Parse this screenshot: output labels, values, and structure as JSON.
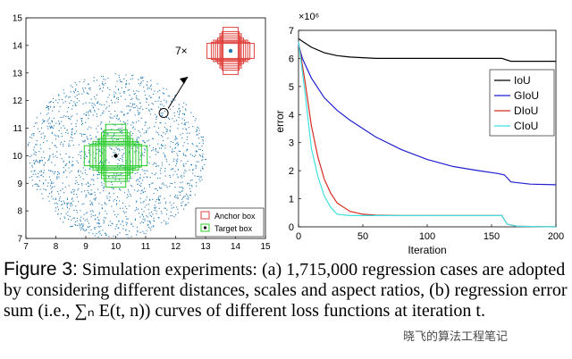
{
  "chart_data": [
    {
      "type": "scatter",
      "panel": "a",
      "xlim": [
        7,
        15
      ],
      "ylim": [
        7,
        15
      ],
      "xticks": [
        "7",
        "8",
        "9",
        "10",
        "11",
        "12",
        "13",
        "14",
        "15"
      ],
      "yticks": [
        "7",
        "8",
        "9",
        "10",
        "11",
        "12",
        "13",
        "14",
        "15"
      ],
      "point_cloud": {
        "center": [
          10,
          10
        ],
        "radius": 3,
        "count": 1700,
        "color": "#1f77b4"
      },
      "target_center": [
        10,
        10
      ],
      "zoom_point": [
        11.6,
        11.55
      ],
      "zoom_label": "7×",
      "legend": [
        {
          "label": "Anchor box",
          "color": "#e0413c"
        },
        {
          "label": "Target box",
          "color": "#2ecc2e"
        }
      ]
    },
    {
      "type": "line",
      "panel": "b",
      "xlabel": "Iteration",
      "ylabel": "error",
      "scale_label": "×10⁶",
      "xlim": [
        0,
        200
      ],
      "ylim": [
        0,
        7
      ],
      "xticks": [
        "0",
        "50",
        "100",
        "150",
        "200"
      ],
      "yticks": [
        "0",
        "1",
        "2",
        "3",
        "4",
        "5",
        "6",
        "7"
      ],
      "series": [
        {
          "name": "IoU",
          "color": "#000000",
          "x": [
            0,
            5,
            10,
            20,
            30,
            40,
            60,
            80,
            100,
            120,
            140,
            158,
            165,
            180,
            200
          ],
          "y": [
            6.7,
            6.55,
            6.4,
            6.2,
            6.1,
            6.05,
            6.0,
            6.0,
            6.0,
            6.0,
            6.0,
            6.0,
            5.9,
            5.9,
            5.9
          ]
        },
        {
          "name": "GIoU",
          "color": "#1f1fd0",
          "x": [
            0,
            3,
            10,
            20,
            30,
            40,
            60,
            80,
            100,
            120,
            140,
            155,
            160,
            165,
            180,
            200
          ],
          "y": [
            6.5,
            6.0,
            5.3,
            4.6,
            4.15,
            3.8,
            3.2,
            2.75,
            2.4,
            2.15,
            2.0,
            1.9,
            1.85,
            1.6,
            1.52,
            1.5
          ]
        },
        {
          "name": "DIoU",
          "color": "#d62c20",
          "x": [
            0,
            5,
            10,
            15,
            20,
            25,
            30,
            40,
            50,
            60,
            80,
            100,
            120,
            140,
            158,
            162,
            170,
            200
          ],
          "y": [
            6.6,
            5.2,
            3.6,
            2.5,
            1.7,
            1.2,
            0.85,
            0.55,
            0.45,
            0.42,
            0.4,
            0.4,
            0.4,
            0.4,
            0.4,
            0.1,
            0.02,
            0.0
          ]
        },
        {
          "name": "CIoU",
          "color": "#3fe0e0",
          "x": [
            0,
            5,
            10,
            15,
            20,
            25,
            30,
            40,
            50,
            60,
            80,
            100,
            120,
            140,
            158,
            162,
            170,
            200
          ],
          "y": [
            6.6,
            4.8,
            2.8,
            1.8,
            1.1,
            0.7,
            0.45,
            0.4,
            0.4,
            0.4,
            0.4,
            0.4,
            0.4,
            0.4,
            0.4,
            0.1,
            0.02,
            0.0
          ]
        }
      ]
    }
  ],
  "caption": {
    "fig_no": "Figure 3:",
    "text": " Simulation experiments: (a) 1,715,000 regression cases are adopted by considering different distances, scales and aspect ratios, (b) regression error sum (i.e., ∑ₙ E(t, n)) curves of different loss functions at iteration t."
  },
  "watermark": "晓飞的算法工程笔记"
}
